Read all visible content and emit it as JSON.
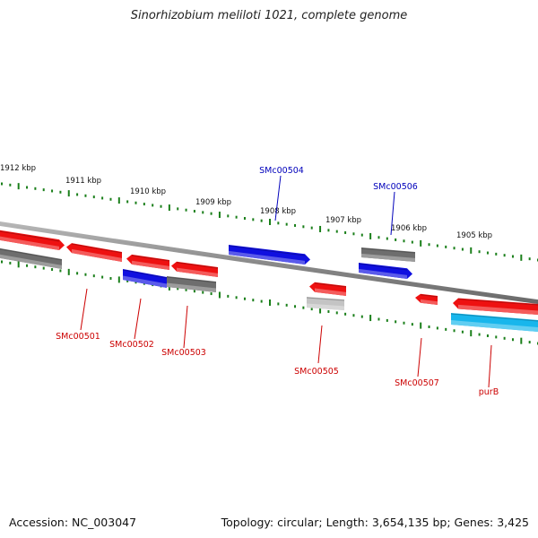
{
  "title": "Sinorhizobium meliloti 1021, complete genome",
  "footer": {
    "accession": "Accession: NC_003047",
    "summary": "Topology: circular; Length: 3,654,135 bp; Genes: 3,425"
  },
  "colors": {
    "backbone": "#8c8c8c",
    "tick": "#1a7f1a",
    "red": "#ee1111",
    "gray": "#6e6e6e",
    "blue": "#1010e0",
    "light_gray": "#c4c4c4",
    "cyan": "#18b6ec",
    "label_red": "#cc0000",
    "label_blue": "#0000bb"
  },
  "scale_labels": [
    "1912 kbp",
    "1911 kbp",
    "1910 kbp",
    "1909 kbp",
    "1908 kbp",
    "1907 kbp",
    "1906 kbp",
    "1905 kbp"
  ],
  "gene_labels": [
    {
      "name": "SMc00501",
      "side": "below",
      "color": "label_red"
    },
    {
      "name": "SMc00502",
      "side": "below",
      "color": "label_red"
    },
    {
      "name": "SMc00503",
      "side": "below",
      "color": "label_red"
    },
    {
      "name": "SMc00504",
      "side": "above",
      "color": "label_blue"
    },
    {
      "name": "SMc00505",
      "side": "below",
      "color": "label_red"
    },
    {
      "name": "SMc00506",
      "side": "above",
      "color": "label_blue"
    },
    {
      "name": "SMc00507",
      "side": "below",
      "color": "label_red"
    },
    {
      "name": "purB",
      "side": "below",
      "color": "label_red"
    }
  ],
  "features": [
    {
      "color": "red"
    },
    {
      "color": "red"
    },
    {
      "color": "red"
    },
    {
      "color": "red"
    },
    {
      "color": "red"
    },
    {
      "color": "red"
    },
    {
      "color": "red"
    },
    {
      "color": "gray"
    },
    {
      "color": "gray"
    },
    {
      "color": "gray"
    },
    {
      "color": "blue"
    },
    {
      "color": "blue"
    },
    {
      "color": "blue"
    },
    {
      "color": "light_gray"
    },
    {
      "color": "cyan"
    }
  ]
}
